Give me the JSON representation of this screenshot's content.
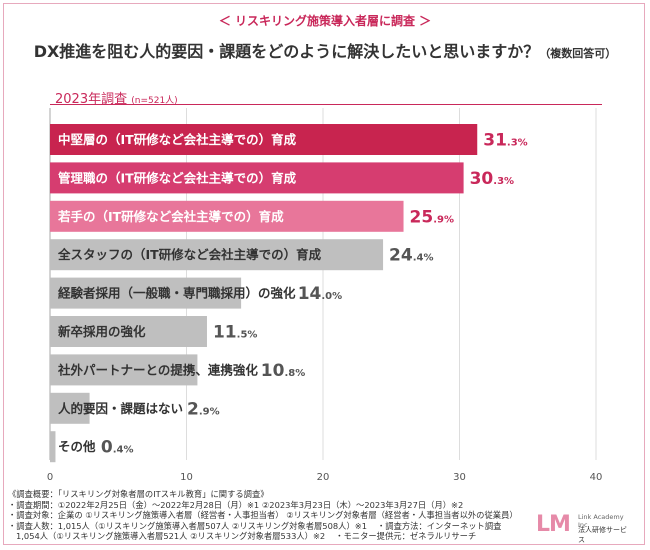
{
  "kicker": "＜ リスキリング施策導入者層に調査 ＞",
  "headline": "DX推進を阻む人的要因・課題をどのように解決したいと思いますか？",
  "headline_note": "（複数回答可）",
  "year_label": "2023年調査",
  "sample_note": "(n=521人)",
  "colors": {
    "accent": "#c9285a",
    "bar_rank1": "#c8244f",
    "bar_rank2": "#d63d70",
    "bar_rank3": "#e8769a",
    "bar_other": "#bfbfbf"
  },
  "chart_data": {
    "type": "bar",
    "orientation": "horizontal",
    "categories": [
      "中堅層の（IT研修など会社主導での）育成",
      "管理職の（IT研修など会社主導での）育成",
      "若手の（IT研修など会社主導での）育成",
      "全スタッフの（IT研修など会社主導での）育成",
      "経験者採用（一般職・専門職採用）の強化",
      "新卒採用の強化",
      "社外パートナーとの提携、連携強化",
      "人的要因・課題はない",
      "その他"
    ],
    "values": [
      31.3,
      30.3,
      25.9,
      24.4,
      14.0,
      11.5,
      10.8,
      2.9,
      0.4
    ],
    "value_labels": [
      "31.3",
      "30.3",
      "25.9",
      "24.4",
      "14.0",
      "11.5",
      "10.8",
      "2.9",
      "0.4"
    ],
    "unit": "%",
    "xlim": [
      0,
      40
    ],
    "xticks": [
      0,
      10,
      20,
      30,
      40
    ],
    "grid": true
  },
  "footnote": {
    "line1": "《調査概要：「リスキリング対象者層のITスキル教育」に関する調査》",
    "line2": "・調査期間：①2022年2月25日（金）～2022年2月28日（月）※1 ②2023年3月23日（木）～2023年3月27日（月）※2",
    "line3": "・調査対象：企業の ①リスキリング施策導入者層（経営者・人事担当者） ②リスキリング対象者層（経営者・人事担当者以外の従業員）",
    "line4a": "・調査人数：1,015人（①リスキリング施策導入者層507人 ②リスキリング対象者層508人）※1",
    "line4b": "・調査方法：インターネット調査",
    "line5a": "1,054人（①リスキリング施策導入者層521人 ②リスキリング対象者層533人）※2",
    "line5b": "・モニター提供元：ゼネラルリサーチ"
  },
  "logo": {
    "mark": "LM",
    "name_en": "Link Academy Inc.",
    "name_jp": "法人研修サービス"
  }
}
